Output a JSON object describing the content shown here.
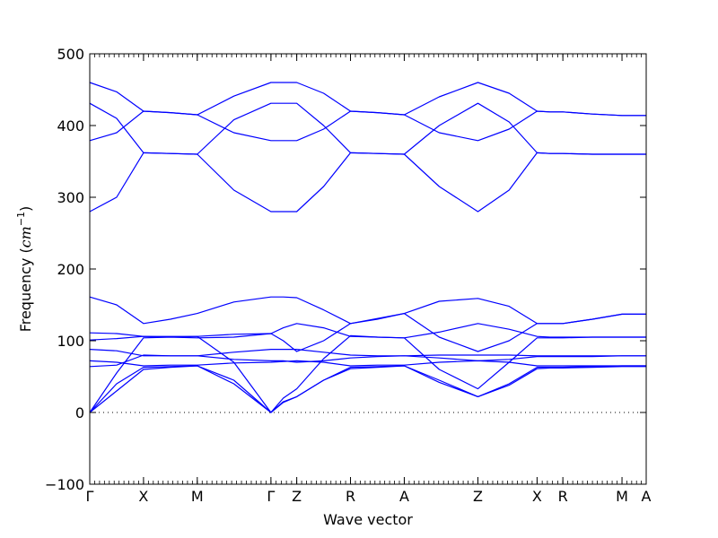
{
  "chart_data": {
    "type": "line",
    "xlabel": "Wave vector",
    "ylabel": "Frequency (",
    "ylabel_unit": "cm",
    "ylabel_exp": "−1",
    "ylabel_close": ")",
    "ylim": [
      -100,
      500
    ],
    "yticks": [
      -100,
      0,
      100,
      200,
      300,
      400,
      500
    ],
    "ytick_labels": [
      "−100",
      "0",
      "100",
      "200",
      "300",
      "400",
      "500"
    ],
    "xlim": [
      0,
      10.35
    ],
    "kpoints": [
      {
        "label": "Γ",
        "x": 0.0
      },
      {
        "label": "X",
        "x": 1.0
      },
      {
        "label": "M",
        "x": 2.0
      },
      {
        "label": "Γ",
        "x": 3.37
      },
      {
        "label": "Z",
        "x": 3.85
      },
      {
        "label": "R",
        "x": 4.85
      },
      {
        "label": "A",
        "x": 5.85
      },
      {
        "label": "Z",
        "x": 7.22
      },
      {
        "label": "X",
        "x": 8.32
      },
      {
        "label": "R",
        "x": 8.8
      },
      {
        "label": "M",
        "x": 9.9
      },
      {
        "label": "A",
        "x": 10.35
      }
    ],
    "zero_line": 0,
    "series_color": "#0000ff",
    "series": [
      {
        "x": [
          0,
          0.5,
          1.0,
          1.5,
          2.0,
          2.68,
          3.37,
          3.6,
          3.85,
          4.35,
          4.85,
          5.35,
          5.85,
          6.5,
          7.22,
          7.8,
          8.32,
          8.56,
          8.8,
          9.35,
          9.9,
          10.35
        ],
        "y": [
          460,
          447,
          420,
          418,
          415,
          441,
          460,
          460,
          460,
          445,
          420,
          418,
          415,
          440,
          460,
          445,
          420,
          419,
          419,
          416,
          414,
          414
        ]
      },
      {
        "x": [
          0,
          0.5,
          1.0,
          1.5,
          2.0,
          2.68,
          3.37,
          3.6,
          3.85,
          4.35,
          4.85,
          5.35,
          5.85,
          6.5,
          7.22,
          7.8,
          8.32,
          8.56,
          8.8,
          9.35,
          9.9,
          10.35
        ],
        "y": [
          431,
          410,
          362,
          361,
          360,
          408,
          431,
          431,
          431,
          400,
          362,
          361,
          360,
          400,
          431,
          405,
          362,
          361,
          361,
          360,
          360,
          360
        ]
      },
      {
        "x": [
          0,
          0.5,
          1.0,
          1.5,
          2.0,
          2.68,
          3.37,
          3.6,
          3.85,
          4.35,
          4.85,
          5.35,
          5.85,
          6.5,
          7.22,
          7.8,
          8.32,
          8.56,
          8.8,
          9.35,
          9.9,
          10.35
        ],
        "y": [
          379,
          390,
          420,
          418,
          415,
          390,
          379,
          379,
          379,
          395,
          420,
          418,
          415,
          390,
          379,
          395,
          420,
          419,
          419,
          416,
          414,
          414
        ]
      },
      {
        "x": [
          0,
          0.5,
          1.0,
          1.5,
          2.0,
          2.68,
          3.37,
          3.6,
          3.85,
          4.35,
          4.85,
          5.35,
          5.85,
          6.5,
          7.22,
          7.8,
          8.32,
          8.56,
          8.8,
          9.35,
          9.9,
          10.35
        ],
        "y": [
          280,
          300,
          362,
          361,
          360,
          310,
          280,
          280,
          280,
          315,
          362,
          361,
          360,
          315,
          280,
          310,
          362,
          361,
          361,
          360,
          360,
          360
        ]
      },
      {
        "x": [
          0,
          0.5,
          1.0,
          1.5,
          2.0,
          2.68,
          3.37,
          3.6,
          3.85,
          4.35,
          4.85,
          5.35,
          5.85,
          6.5,
          7.22,
          7.8,
          8.32,
          8.56,
          8.8,
          9.35,
          9.9,
          10.35
        ],
        "y": [
          161,
          150,
          124,
          130,
          138,
          154,
          161,
          161,
          160,
          143,
          124,
          131,
          138,
          155,
          159,
          148,
          124,
          124,
          124,
          130,
          137,
          137
        ]
      },
      {
        "x": [
          0,
          0.5,
          1.0,
          1.5,
          2.0,
          2.68,
          3.37,
          3.6,
          3.85,
          4.35,
          4.85,
          5.35,
          5.85,
          6.5,
          7.22,
          7.8,
          8.32,
          8.56,
          8.8,
          9.35,
          9.9,
          10.35
        ],
        "y": [
          111,
          110,
          106,
          106,
          106,
          109,
          110,
          100,
          85,
          100,
          124,
          130,
          138,
          105,
          85,
          100,
          124,
          124,
          124,
          130,
          137,
          137
        ]
      },
      {
        "x": [
          0,
          0.5,
          1.0,
          1.5,
          2.0,
          2.68,
          3.37,
          3.6,
          3.85,
          4.35,
          4.85,
          5.35,
          5.85,
          6.5,
          7.22,
          7.8,
          8.32,
          8.56,
          8.8,
          9.35,
          9.9,
          10.35
        ],
        "y": [
          101,
          103,
          106,
          105,
          104,
          105,
          110,
          118,
          124,
          118,
          106,
          105,
          104,
          112,
          124,
          116,
          106,
          105,
          105,
          105,
          105,
          105
        ]
      },
      {
        "x": [
          0,
          0.5,
          1.0,
          1.5,
          2.0,
          2.68,
          3.37,
          3.6,
          3.85,
          4.35,
          4.85,
          5.35,
          5.85,
          6.5,
          7.22,
          7.8,
          8.32,
          8.56,
          8.8,
          9.35,
          9.9,
          10.35
        ],
        "y": [
          88,
          86,
          79,
          79,
          79,
          84,
          88,
          88,
          88,
          84,
          80,
          79,
          79,
          80,
          80,
          80,
          79,
          79,
          79,
          79,
          79,
          79
        ]
      },
      {
        "x": [
          0,
          0.5,
          1.0,
          1.5,
          2.0,
          2.68,
          3.37,
          3.6,
          3.85,
          4.35,
          4.85,
          5.35,
          5.85,
          6.5,
          7.22,
          7.8,
          8.32,
          8.56,
          8.8,
          9.35,
          9.9,
          10.35
        ],
        "y": [
          72,
          70,
          65,
          66,
          66,
          69,
          70,
          71,
          72,
          70,
          65,
          66,
          66,
          70,
          72,
          70,
          65,
          65,
          65,
          65,
          65,
          65
        ]
      },
      {
        "x": [
          0,
          0.5,
          1.0,
          1.5,
          2.0,
          2.68,
          3.37,
          3.6,
          3.85,
          4.35,
          4.85,
          5.35,
          5.85,
          6.5,
          7.22,
          7.8,
          8.32,
          8.56,
          8.8,
          9.35,
          9.9,
          10.35
        ],
        "y": [
          64,
          66,
          80,
          79,
          79,
          74,
          72,
          72,
          70,
          72,
          76,
          78,
          79,
          76,
          72,
          74,
          78,
          78,
          78,
          78,
          79,
          79
        ]
      },
      {
        "x": [
          0,
          0.5,
          1.0,
          1.5,
          2.0,
          2.68,
          3.37,
          3.6,
          3.85,
          4.35,
          4.85,
          5.35,
          5.85,
          6.5,
          7.22,
          7.8,
          8.32,
          8.56,
          8.8,
          9.35,
          9.9,
          10.35
        ],
        "y": [
          0,
          55,
          104,
          105,
          106,
          70,
          0,
          20,
          33,
          75,
          107,
          105,
          104,
          60,
          33,
          70,
          104,
          104,
          104,
          105,
          105,
          105
        ]
      },
      {
        "x": [
          0,
          0.5,
          1.0,
          1.5,
          2.0,
          2.68,
          3.37,
          3.6,
          3.85,
          4.35,
          4.85,
          5.35,
          5.85,
          6.5,
          7.22,
          7.8,
          8.32,
          8.56,
          8.8,
          9.35,
          9.9,
          10.35
        ],
        "y": [
          0,
          40,
          63,
          64,
          65,
          45,
          0,
          15,
          22,
          45,
          63,
          64,
          65,
          45,
          22,
          40,
          63,
          63,
          63,
          64,
          65,
          65
        ]
      },
      {
        "x": [
          0,
          0.5,
          1.0,
          1.5,
          2.0,
          2.68,
          3.37,
          3.6,
          3.85,
          4.35,
          4.85,
          5.35,
          5.85,
          6.5,
          7.22,
          7.8,
          8.32,
          8.56,
          8.8,
          9.35,
          9.9,
          10.35
        ],
        "y": [
          0,
          30,
          60,
          63,
          65,
          40,
          0,
          14,
          22,
          45,
          61,
          63,
          65,
          42,
          22,
          38,
          61,
          62,
          62,
          63,
          64,
          64
        ]
      }
    ]
  }
}
